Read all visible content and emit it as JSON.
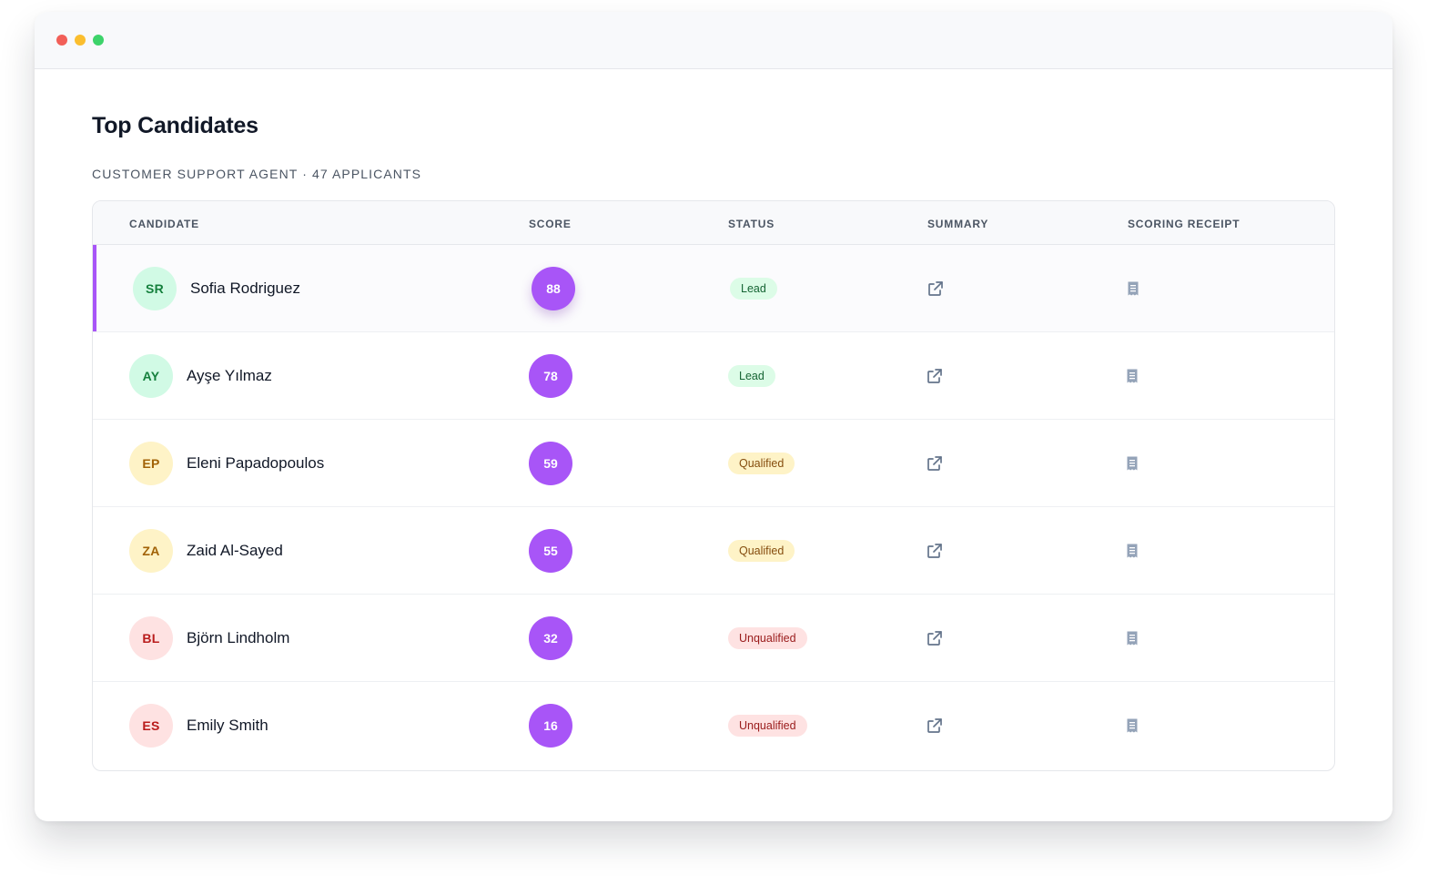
{
  "page": {
    "title": "Top Candidates",
    "subtitle": "CUSTOMER SUPPORT AGENT · 47 APPLICANTS"
  },
  "table": {
    "columns": {
      "candidate": "CANDIDATE",
      "score": "SCORE",
      "status": "STATUS",
      "summary": "SUMMARY",
      "receipt": "SCORING RECEIPT"
    },
    "rows": [
      {
        "initials": "SR",
        "name": "Sofia Rodriguez",
        "score": "88",
        "status": "Lead",
        "status_type": "lead",
        "avatar_color": "green",
        "summary_icon": "external-link-icon",
        "receipt_icon": "receipt-icon"
      },
      {
        "initials": "AY",
        "name": "Ayşe Yılmaz",
        "score": "78",
        "status": "Lead",
        "status_type": "lead",
        "avatar_color": "green",
        "summary_icon": "external-link-icon",
        "receipt_icon": "receipt-icon"
      },
      {
        "initials": "EP",
        "name": "Eleni Papadopoulos",
        "score": "59",
        "status": "Qualified",
        "status_type": "qualified",
        "avatar_color": "yellow",
        "summary_icon": "external-link-icon",
        "receipt_icon": "receipt-icon"
      },
      {
        "initials": "ZA",
        "name": "Zaid Al-Sayed",
        "score": "55",
        "status": "Qualified",
        "status_type": "qualified",
        "avatar_color": "yellow",
        "summary_icon": "external-link-icon",
        "receipt_icon": "receipt-icon"
      },
      {
        "initials": "BL",
        "name": "Björn Lindholm",
        "score": "32",
        "status": "Unqualified",
        "status_type": "unqualified",
        "avatar_color": "red",
        "summary_icon": "external-link-icon",
        "receipt_icon": "receipt-icon"
      },
      {
        "initials": "ES",
        "name": "Emily Smith",
        "score": "16",
        "status": "Unqualified",
        "status_type": "unqualified",
        "avatar_color": "red",
        "summary_icon": "external-link-icon",
        "receipt_icon": "receipt-icon"
      }
    ]
  },
  "colors": {
    "accent": "#a855f7",
    "lead_bg": "#dcfce7",
    "qualified_bg": "#fef3c7",
    "unqualified_bg": "#fee2e2"
  }
}
